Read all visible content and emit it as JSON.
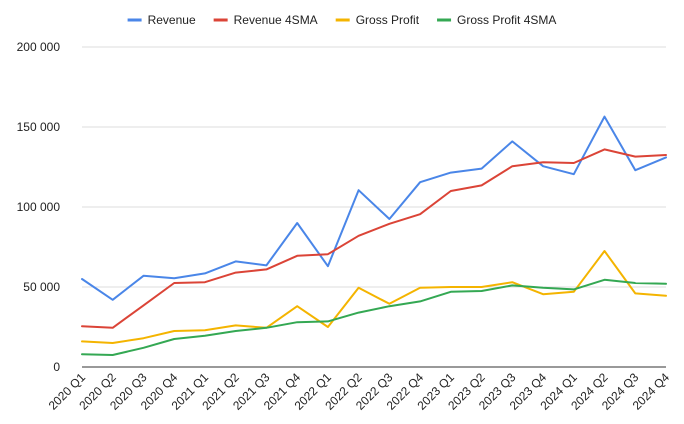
{
  "chart_data": {
    "type": "line",
    "title": "",
    "xlabel": "",
    "ylabel": "",
    "ylim": [
      0,
      200000
    ],
    "yticks": [
      0,
      50000,
      100000,
      150000,
      200000
    ],
    "ytick_labels": [
      "0",
      "50 000",
      "100 000",
      "150 000",
      "200 000"
    ],
    "grid": true,
    "legend_position": "top",
    "categories": [
      "2020 Q1",
      "2020 Q2",
      "2020 Q3",
      "2020 Q4",
      "2021 Q1",
      "2021 Q2",
      "2021 Q3",
      "2021 Q4",
      "2022 Q1",
      "2022 Q2",
      "2022 Q3",
      "2022 Q4",
      "2023 Q1",
      "2023 Q2",
      "2023 Q3",
      "2023 Q4",
      "2024 Q1",
      "2024 Q2",
      "2024 Q3",
      "2024 Q4"
    ],
    "series": [
      {
        "name": "Revenue",
        "color": "#4a86e8",
        "values": [
          55000,
          42000,
          57000,
          55500,
          58500,
          66000,
          63500,
          90000,
          63000,
          110500,
          92500,
          115500,
          121500,
          124000,
          141000,
          125500,
          120500,
          156500,
          123000,
          131000
        ]
      },
      {
        "name": "Revenue 4SMA",
        "color": "#db4437",
        "values": [
          25500,
          24500,
          38500,
          52500,
          53000,
          59000,
          61000,
          69500,
          70500,
          82000,
          89500,
          95500,
          110000,
          113500,
          125500,
          128000,
          127500,
          136000,
          131500,
          132500
        ]
      },
      {
        "name": "Gross Profit",
        "color": "#f4b400",
        "values": [
          16000,
          15000,
          18000,
          22500,
          23000,
          26000,
          24500,
          38000,
          25000,
          49500,
          39500,
          49500,
          50000,
          50000,
          53000,
          45500,
          47000,
          72500,
          46000,
          44500
        ]
      },
      {
        "name": "Gross Profit 4SMA",
        "color": "#34a853",
        "values": [
          8000,
          7500,
          12000,
          17500,
          19500,
          22500,
          24500,
          28000,
          28500,
          34000,
          38000,
          41000,
          47000,
          47500,
          51000,
          49500,
          48500,
          54500,
          52500,
          52000
        ]
      }
    ]
  }
}
